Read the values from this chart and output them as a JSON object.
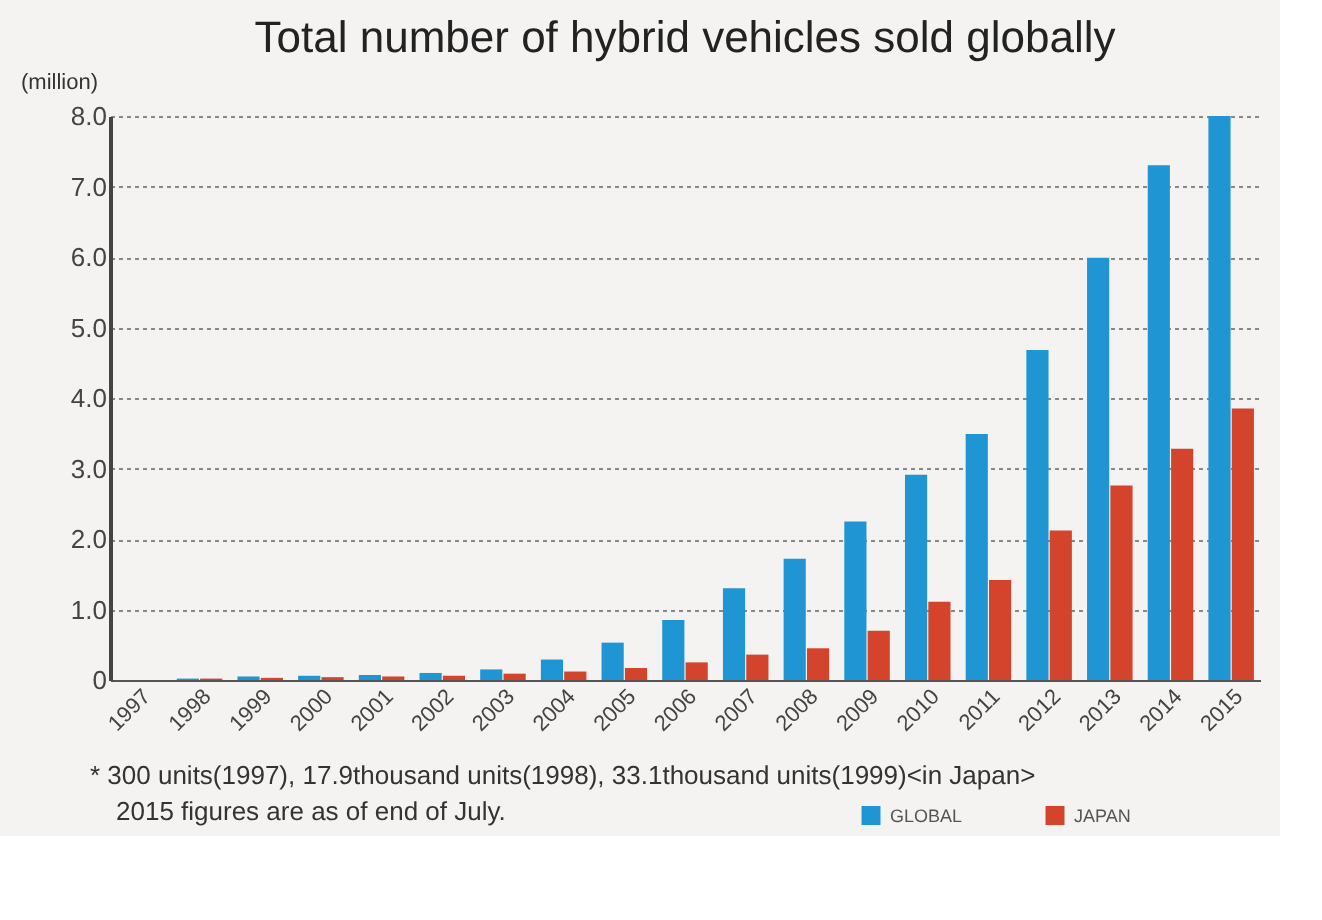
{
  "chart_data": {
    "type": "bar",
    "title": "Total number of hybrid vehicles sold globally",
    "ylabel": "(million)",
    "categories": [
      "1997",
      "1998",
      "1999",
      "2000",
      "2001",
      "2002",
      "2003",
      "2004",
      "2005",
      "2006",
      "2007",
      "2008",
      "2009",
      "2010",
      "2011",
      "2012",
      "2013",
      "2014",
      "2015"
    ],
    "series": [
      {
        "name": "GLOBAL",
        "color": "#1f95d3",
        "values": [
          0,
          0.02,
          0.05,
          0.06,
          0.07,
          0.1,
          0.15,
          0.29,
          0.53,
          0.85,
          1.3,
          1.72,
          2.25,
          2.91,
          3.49,
          4.68,
          5.99,
          7.3,
          8.0
        ]
      },
      {
        "name": "JAPAN",
        "color": "#d4432b",
        "values": [
          0,
          0.02,
          0.03,
          0.04,
          0.05,
          0.06,
          0.09,
          0.12,
          0.17,
          0.25,
          0.36,
          0.45,
          0.7,
          1.11,
          1.42,
          2.12,
          2.76,
          3.28,
          3.85
        ]
      }
    ],
    "ylim": [
      0,
      8
    ],
    "yticks": [
      0,
      {
        "value": 1,
        "label": "1.0"
      },
      {
        "value": 2,
        "label": "2.0"
      },
      {
        "value": 3,
        "label": "3.0"
      },
      {
        "value": 4,
        "label": "4.0"
      },
      {
        "value": 5,
        "label": "5.0"
      },
      {
        "value": 6,
        "label": "6.0"
      },
      {
        "value": 7,
        "label": "7.0"
      },
      {
        "value": 8,
        "label": "8.0"
      }
    ],
    "grid": "y",
    "legend": "bottom right",
    "annotations": [
      "* 300 units(1997), 17.9thousand units(1998), 33.1thousand units(1999)<in Japan>",
      "2015 figures are as of end of July."
    ]
  }
}
